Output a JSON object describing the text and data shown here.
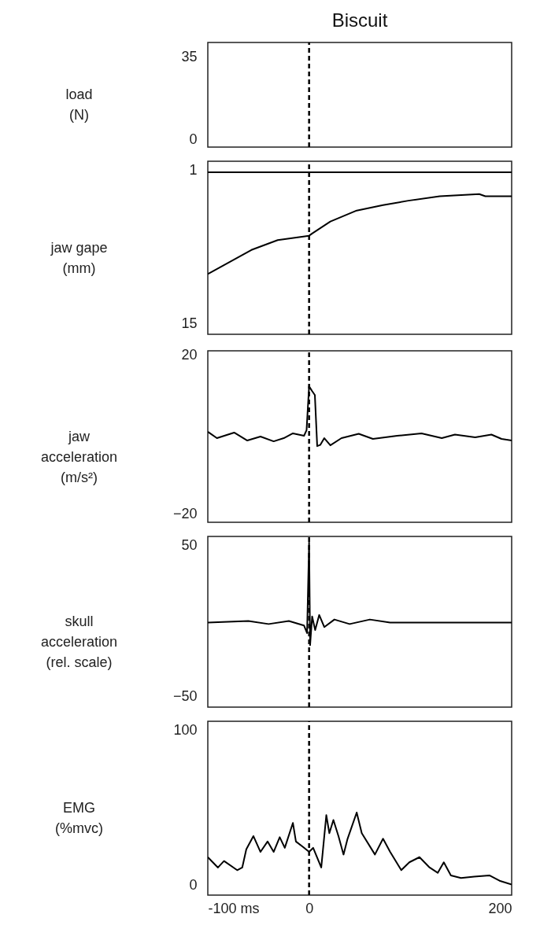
{
  "chart_data": [
    {
      "type": "line",
      "title": "Biscuit",
      "ylabel": "load\n(N)",
      "xlim": [
        -100,
        200
      ],
      "tick_labels": "y",
      "ylim": [
        -3,
        41
      ],
      "yticks": [
        0,
        35
      ],
      "ref_lines": [
        {
          "axis": "x",
          "value": 0,
          "line_style": "dashed",
          "color": "#000000"
        }
      ]
    },
    {
      "type": "line",
      "ylabel": "jaw gape\n(mm)",
      "xlim": [
        -100,
        200
      ],
      "tick_labels": "y",
      "ylim": [
        16,
        0.2
      ],
      "yticks": [
        1,
        15
      ],
      "ref_lines": [
        {
          "axis": "x",
          "value": 0,
          "line_style": "dashed",
          "color": "#000000"
        }
      ],
      "series": [
        {
          "color": "#000000",
          "x": [
            -100,
            -50,
            0,
            50,
            100,
            150,
            200
          ],
          "values": [
            1.2,
            1.2,
            1.2,
            1.2,
            1.2,
            1.2,
            1.2
          ]
        },
        {
          "color": "#000000",
          "x": [
            -100,
            -57,
            -31,
            0,
            3,
            21,
            47,
            73,
            98,
            129,
            168,
            174,
            200
          ],
          "values": [
            10.5,
            8.3,
            7.4,
            7.0,
            6.8,
            5.7,
            4.7,
            4.2,
            3.8,
            3.4,
            3.2,
            3.4,
            3.4
          ]
        }
      ]
    },
    {
      "type": "line",
      "ylabel": "jaw\nacceleration\n(m/s²)",
      "xlim": [
        -100,
        200
      ],
      "tick_labels": "y",
      "ylim": [
        -22,
        21
      ],
      "yticks": [
        -20,
        20
      ],
      "ref_lines": [
        {
          "axis": "x",
          "value": 0,
          "line_style": "dashed",
          "color": "#000000"
        }
      ],
      "series": [
        {
          "color": "#000000",
          "x": [
            -100,
            -91,
            -74,
            -61,
            -48,
            -35,
            -25,
            -16,
            -5,
            -2.5,
            0,
            3,
            5.7,
            8,
            11,
            15,
            21,
            32,
            49,
            63,
            87,
            111,
            131,
            144,
            164,
            180,
            190,
            200
          ],
          "values": [
            0.7,
            -0.9,
            0.5,
            -1.5,
            -0.5,
            -1.7,
            -0.9,
            0.3,
            -0.3,
            1.1,
            12.1,
            10.9,
            9.9,
            -2.9,
            -2.6,
            -0.9,
            -2.7,
            -0.9,
            0.2,
            -1.1,
            -0.3,
            0.3,
            -0.9,
            0,
            -0.7,
            0,
            -1.1,
            -1.5
          ]
        }
      ]
    },
    {
      "type": "line",
      "ylabel": "skull\nacceleration\n(rel. scale)",
      "xlim": [
        -100,
        200
      ],
      "tick_labels": "y",
      "ylim": [
        -57,
        56
      ],
      "yticks": [
        -50,
        50
      ],
      "ref_lines": [
        {
          "axis": "x",
          "value": 0,
          "line_style": "dashed",
          "color": "#000000"
        }
      ],
      "series": [
        {
          "color": "#000000",
          "x": [
            -100,
            -60,
            -40,
            -20,
            -5,
            -2,
            0,
            1,
            3,
            6,
            10,
            15,
            25,
            40,
            60,
            80,
            100,
            150,
            200
          ],
          "values": [
            -1,
            0,
            -2,
            0,
            -3,
            -8,
            52,
            -16,
            3,
            -6,
            4,
            -4,
            1,
            -2,
            1,
            -1,
            -1,
            -1,
            -1
          ]
        }
      ]
    },
    {
      "type": "line",
      "ylabel": "EMG\n(%mvc)",
      "xlim": [
        -100,
        200
      ],
      "xticks": [
        {
          "value": -100,
          "label": "-100 ms"
        },
        0,
        200
      ],
      "ylim": [
        -6.6,
        105.6
      ],
      "yticks": [
        0,
        100
      ],
      "ref_lines": [
        {
          "axis": "x",
          "value": 0,
          "line_style": "dashed",
          "color": "#000000"
        }
      ],
      "series": [
        {
          "color": "#000000",
          "x": [
            -100,
            -90,
            -84,
            -71,
            -66,
            -62,
            -55,
            -48,
            -41,
            -35,
            -29,
            -24,
            -16,
            -13,
            -6,
            0,
            4,
            12,
            17,
            20,
            24,
            29,
            34,
            38,
            47,
            52,
            65,
            73,
            80,
            91,
            99,
            109,
            119,
            127,
            133,
            140,
            150,
            163,
            178,
            188,
            200
          ],
          "values": [
            17.9,
            11.2,
            15.4,
            9.5,
            11.2,
            23,
            31.5,
            21.3,
            28,
            21.3,
            30.8,
            23.9,
            40,
            28,
            24.5,
            21.3,
            23.9,
            11.2,
            45,
            33.4,
            41.9,
            31.5,
            19.6,
            29.8,
            46.7,
            33.4,
            19.6,
            29.8,
            21.3,
            9.5,
            14.6,
            17.9,
            11.2,
            7.8,
            14.6,
            6.1,
            4.4,
            5.3,
            6.1,
            2.7,
            0.2
          ]
        }
      ]
    }
  ]
}
